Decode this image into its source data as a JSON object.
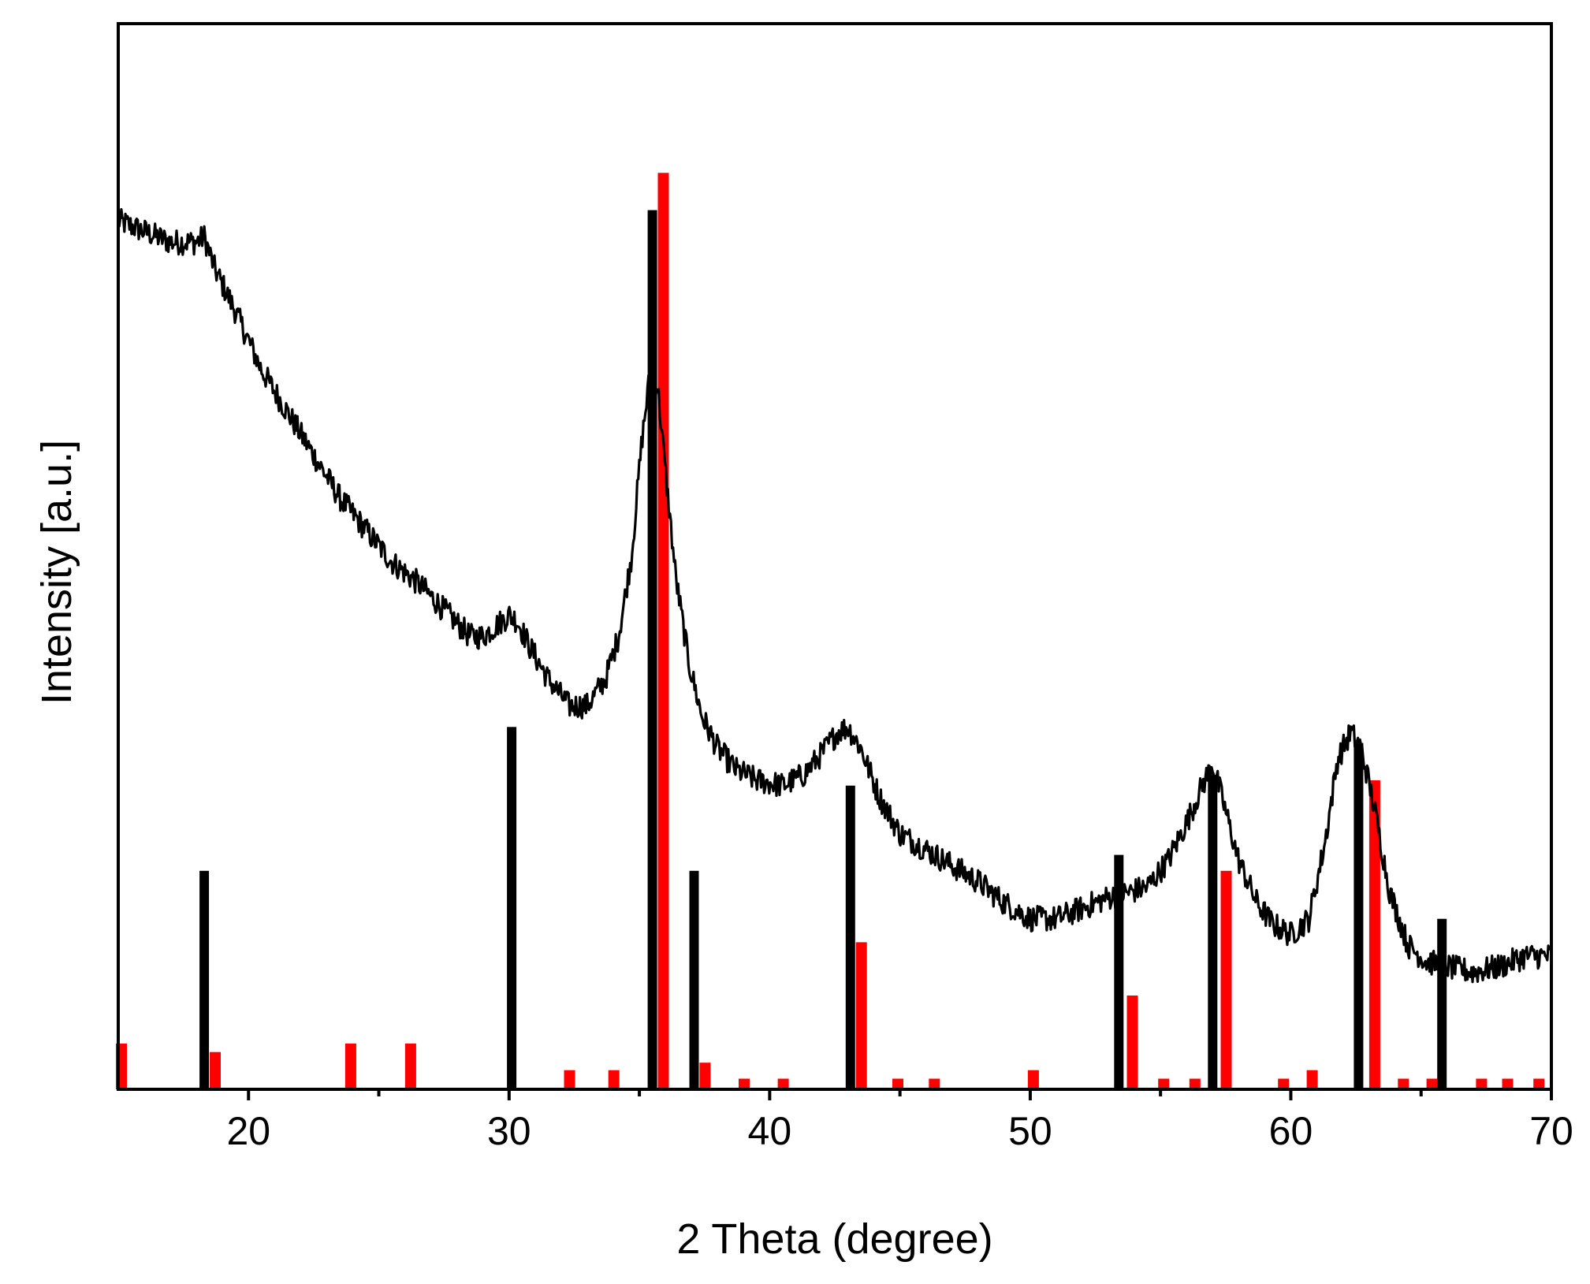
{
  "chart_data": {
    "type": "line",
    "xlabel": "2 Theta (degree)",
    "ylabel": "Intensity [a.u.]",
    "xlim": [
      15,
      70
    ],
    "ylim": [
      0,
      100
    ],
    "x_ticks": [
      20,
      30,
      40,
      50,
      60,
      70
    ],
    "x_tick_labels": [
      "20",
      "30",
      "40",
      "50",
      "60",
      "70"
    ],
    "x_minor_ticks": [
      25,
      35,
      45,
      55,
      65
    ],
    "y_ticks": [],
    "grid": false,
    "colors": {
      "line": "#000000",
      "ref_black": "#000000",
      "ref_red": "#ff0000"
    },
    "series": [
      {
        "kind": "line",
        "color": "#000000",
        "noise": 1.2,
        "x": [
          15.0,
          16.0,
          17.0,
          18.0,
          18.3,
          18.7,
          19.5,
          20.5,
          21.5,
          22.5,
          23.5,
          24.5,
          25.5,
          26.5,
          27.5,
          28.5,
          29.0,
          29.5,
          30.0,
          30.3,
          30.8,
          31.5,
          32.3,
          33.0,
          33.7,
          34.2,
          34.7,
          35.1,
          35.4,
          35.7,
          36.0,
          36.4,
          36.9,
          37.4,
          38.0,
          38.7,
          39.5,
          40.5,
          41.3,
          42.0,
          42.6,
          43.0,
          43.5,
          44.2,
          45.0,
          46.0,
          47.0,
          48.0,
          49.0,
          50.0,
          51.0,
          52.0,
          53.0,
          53.8,
          54.5,
          55.3,
          56.0,
          56.6,
          57.0,
          57.4,
          58.0,
          58.7,
          59.3,
          60.0,
          60.7,
          61.3,
          61.8,
          62.3,
          62.7,
          63.2,
          63.8,
          64.5,
          65.2,
          66.0,
          67.0,
          68.0,
          69.0,
          70.0
        ],
        "y": [
          81.5,
          80.5,
          79.5,
          79.5,
          80.0,
          77.0,
          73.0,
          67.5,
          63.5,
          59.5,
          55.5,
          52.5,
          49.5,
          47.5,
          45.0,
          42.5,
          42.5,
          43.5,
          44.5,
          44.0,
          41.5,
          38.5,
          36.0,
          36.0,
          38.5,
          42.5,
          50.0,
          61.0,
          67.0,
          66.0,
          58.0,
          48.0,
          40.0,
          35.0,
          32.0,
          30.0,
          29.0,
          28.5,
          29.5,
          31.5,
          33.5,
          34.0,
          32.0,
          27.5,
          24.0,
          22.5,
          21.0,
          19.5,
          17.5,
          16.0,
          16.0,
          17.0,
          18.0,
          18.5,
          19.0,
          21.5,
          25.0,
          28.5,
          30.5,
          27.0,
          21.5,
          17.5,
          15.5,
          14.5,
          16.0,
          23.0,
          31.0,
          33.5,
          32.0,
          26.5,
          18.5,
          13.5,
          12.0,
          11.5,
          11.0,
          11.5,
          12.5,
          12.5
        ]
      }
    ],
    "reference_black": {
      "color": "#000000",
      "x": [
        18.3,
        30.1,
        35.5,
        37.1,
        43.1,
        53.4,
        57.0,
        62.6,
        65.8
      ],
      "y": [
        20.5,
        34.0,
        82.5,
        20.5,
        28.5,
        22.0,
        29.5,
        32.5,
        16.0
      ]
    },
    "reference_red": {
      "color": "#ff0000",
      "x": [
        15.0,
        18.6,
        23.8,
        26.1,
        32.2,
        33.9,
        35.8,
        37.4,
        38.9,
        40.4,
        43.4,
        44.8,
        46.2,
        50.0,
        53.8,
        55.0,
        56.2,
        57.4,
        59.6,
        60.7,
        63.1,
        64.2,
        65.3,
        67.2,
        68.2,
        69.4
      ],
      "y": [
        4.3,
        3.5,
        4.3,
        4.3,
        1.8,
        1.8,
        86.0,
        2.5,
        1.0,
        1.0,
        13.8,
        1.0,
        1.0,
        1.8,
        8.8,
        1.0,
        1.0,
        20.5,
        1.0,
        1.8,
        29.0,
        1.0,
        1.0,
        1.0,
        1.0,
        1.0
      ]
    }
  }
}
